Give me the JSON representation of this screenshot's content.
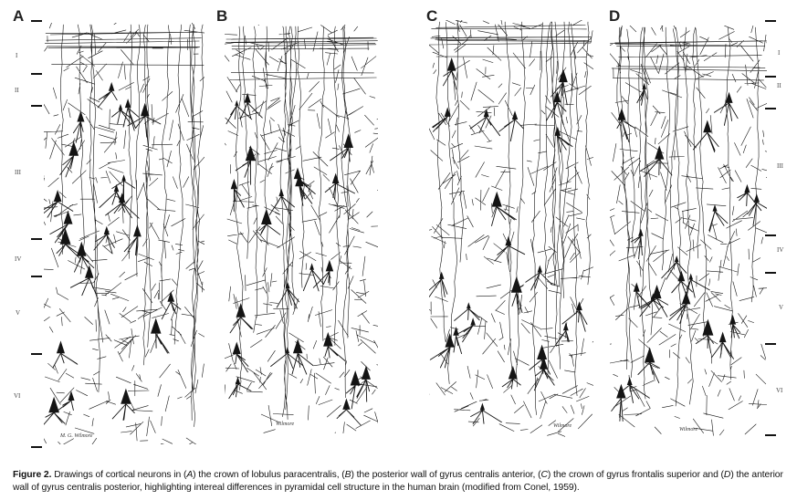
{
  "panels": [
    {
      "letter": "A",
      "signature": "M. G. Wilmore",
      "layers": [
        "I",
        "II",
        "III",
        "IV",
        "V",
        "VI"
      ]
    },
    {
      "letter": "B",
      "signature": "Wilmore"
    },
    {
      "letter": "C",
      "signature": "Wilmore"
    },
    {
      "letter": "D",
      "signature": "Wilmore",
      "layers": [
        "I",
        "II",
        "III",
        "IV",
        "V",
        "VI"
      ]
    }
  ],
  "caption": {
    "label": "Figure 2.",
    "t1": " Drawings of cortical neurons in (",
    "a": "A",
    "t2": ") the crown of lobulus paracentralis, (",
    "b": "B",
    "t3": ") the posterior wall of gyrus centralis anterior, (",
    "c": "C",
    "t4": ") the crown of gyrus frontalis superior and (",
    "d": "D",
    "t5": ") the anterior wall of gyrus centralis posterior, highlighting intereal differences in pyramidal cell structure in the human brain (modified from Conel, 1959)."
  }
}
